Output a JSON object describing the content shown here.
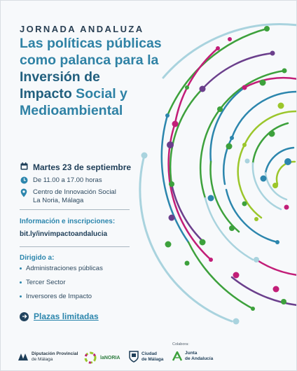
{
  "kicker": "JORNADA ANDALUZA",
  "title": {
    "line1": "Las políticas públicas",
    "line2": "como palanca para la",
    "bold_line3": "Inversión de",
    "bold_word4": "Impacto",
    "rest_line4": " Social y",
    "line5": "Medioambiental"
  },
  "event": {
    "date": "Martes 23 de septiembre",
    "time": "De 11.00 a 17.00 horas",
    "place_line1": "Centro de Innovación Social",
    "place_line2": "La Noria, Málaga"
  },
  "info": {
    "label": "Información e inscripciones:",
    "link": "bit.ly/invimpactoandalucia"
  },
  "audience": {
    "label": "Dirigido a:",
    "items": [
      "Administraciones públicas",
      "Tercer Sector",
      "Inversores de Impacto"
    ]
  },
  "cta": {
    "label": "Plazas limitadas"
  },
  "footer": {
    "diputacion": [
      "Diputación Provincial",
      "de Málaga"
    ],
    "noria": "laNORIA",
    "ciudad": [
      "Ciudad",
      "de Málaga"
    ],
    "colabora": "Colabora:",
    "junta": [
      "Junta",
      "de Andalucía"
    ]
  },
  "colors": {
    "navy": "#1e3e58",
    "blue": "#2c86ad",
    "green": "#3da13c",
    "magenta": "#c21e78",
    "purple": "#6b3f8c",
    "lime": "#9bc62b",
    "lightblue": "#a9d3de"
  }
}
